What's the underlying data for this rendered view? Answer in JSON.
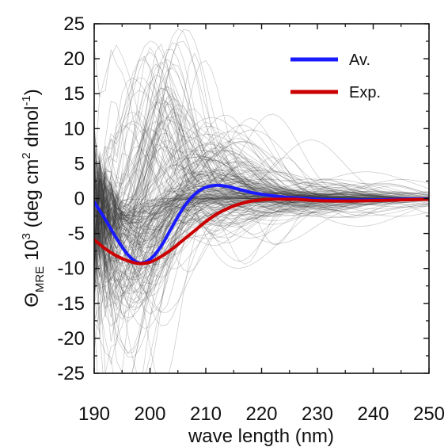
{
  "chart_data": {
    "type": "line",
    "xlabel": "wave length (nm)",
    "ylabel": {
      "symbol": "Θ",
      "subscript": "MRE",
      "mantissa": "10",
      "exponent": "3",
      "unit_open": "(deg cm",
      "unit_sq": "2",
      "unit_mid": " dmol",
      "unit_inv": "-1",
      "unit_close": ")"
    },
    "xlim": [
      190,
      250
    ],
    "ylim": [
      -25,
      25
    ],
    "xticks": [
      "190",
      "200",
      "210",
      "220",
      "230",
      "240",
      "250"
    ],
    "yticks": [
      "25",
      "20",
      "15",
      "10",
      "5",
      "0",
      "-5",
      "-10",
      "-15",
      "-20",
      "-25"
    ],
    "grid": false,
    "legend_position": "top-right",
    "series": [
      {
        "name": "Av.",
        "color": "#1a1aff",
        "x": [
          190,
          192,
          194,
          196,
          198,
          200,
          202,
          204,
          206,
          208,
          210,
          212,
          214,
          216,
          218,
          220,
          222,
          224,
          226,
          228,
          230,
          235,
          240,
          245,
          250
        ],
        "y": [
          -0.5,
          -3.0,
          -5.7,
          -8.0,
          -9.2,
          -8.7,
          -6.8,
          -4.0,
          -1.3,
          0.6,
          1.6,
          1.9,
          1.7,
          1.3,
          0.9,
          0.6,
          0.4,
          0.2,
          0.1,
          0.0,
          -0.1,
          -0.2,
          -0.2,
          -0.1,
          -0.05
        ]
      },
      {
        "name": "Exp.",
        "color": "#cc0000",
        "x": [
          190,
          192,
          194,
          196,
          198,
          200,
          202,
          204,
          206,
          208,
          210,
          212,
          214,
          216,
          218,
          220,
          222,
          224,
          226,
          228,
          230,
          235,
          240,
          245,
          250
        ],
        "y": [
          -5.9,
          -7.2,
          -8.2,
          -8.9,
          -9.3,
          -9.1,
          -8.3,
          -7.2,
          -5.9,
          -4.6,
          -3.3,
          -2.2,
          -1.4,
          -0.8,
          -0.4,
          -0.2,
          -0.1,
          -0.1,
          -0.1,
          -0.2,
          -0.3,
          -0.35,
          -0.3,
          -0.2,
          -0.1
        ]
      }
    ],
    "ensemble": {
      "description": "many thin grey individual spectra",
      "color": "#3a3a3a",
      "count": 220
    }
  }
}
